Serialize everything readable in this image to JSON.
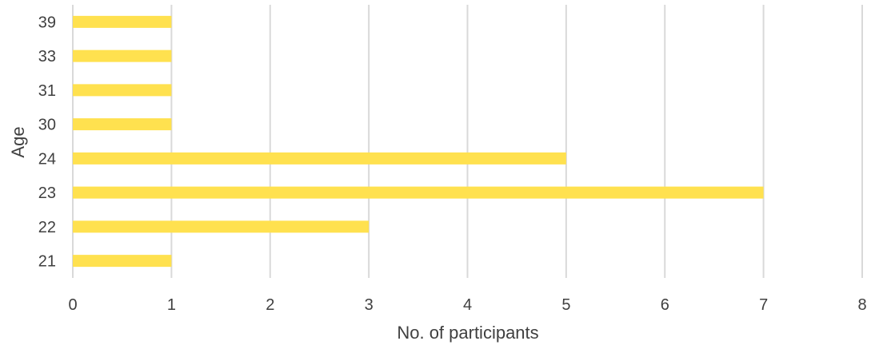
{
  "chart_data": {
    "type": "bar",
    "orientation": "horizontal",
    "categories": [
      "21",
      "22",
      "23",
      "24",
      "30",
      "31",
      "33",
      "39"
    ],
    "values": [
      1,
      3,
      7,
      5,
      1,
      1,
      1,
      1
    ],
    "title": "",
    "xlabel": "No. of participants",
    "ylabel": "Age",
    "xlim": [
      0,
      8
    ],
    "xticks": [
      0,
      1,
      2,
      3,
      4,
      5,
      6,
      7,
      8
    ],
    "grid": "vertical",
    "legend": "none",
    "bar_color": "#FFE14F",
    "grid_color": "#D9D9D9",
    "text_color": "#404040"
  }
}
